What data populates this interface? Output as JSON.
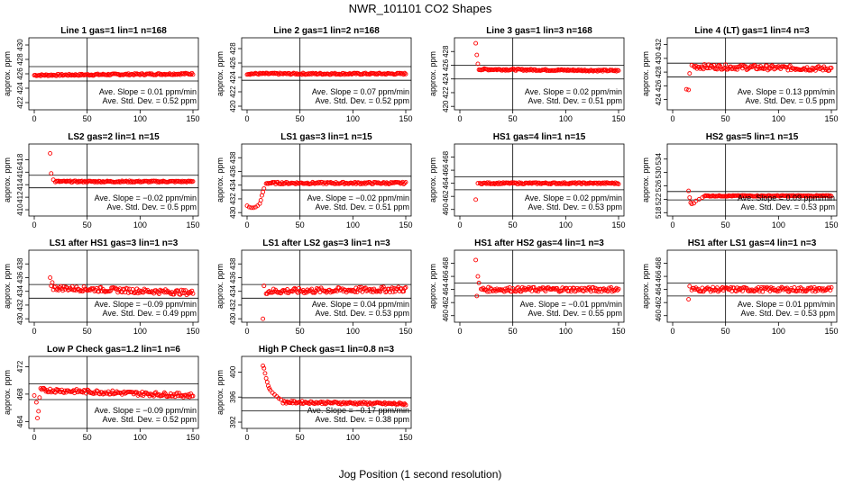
{
  "figure": {
    "title": "NWR_101101   CO2 Shapes",
    "xlabel": "Jog Position (1 second resolution)",
    "ylabel": "approx. ppm",
    "slope_label": "Ave. Slope = ",
    "slope_unit": "  ppm/min",
    "std_label": "Ave. Std. Dev. = ",
    "std_unit": "  ppm"
  },
  "colors": {
    "points": "#ff0000",
    "axes": "#000000"
  },
  "chart_data": [
    {
      "type": "scatter",
      "title": "Line 1 gas=1 lin=1 n=168",
      "xlim": [
        0,
        150
      ],
      "xticks": [
        0,
        50,
        100,
        150
      ],
      "ylim": [
        421,
        431
      ],
      "yticks": [
        422,
        424,
        426,
        428,
        430
      ],
      "hlines": [
        427,
        425
      ],
      "vline": 50,
      "slope": "0.01",
      "std": "0.52",
      "segments": [
        {
          "x": [
            0,
            150
          ],
          "y": [
            425.8,
            426.0
          ],
          "noise": 0.12
        }
      ]
    },
    {
      "type": "scatter",
      "title": "Line 2 gas=1 lin=2 n=168",
      "xlim": [
        0,
        150
      ],
      "xticks": [
        0,
        50,
        100,
        150
      ],
      "ylim": [
        419.5,
        429.5
      ],
      "yticks": [
        420,
        422,
        424,
        426,
        428
      ],
      "hlines": [
        425.5,
        423.6
      ],
      "vline": 50,
      "slope": "0.07",
      "std": "0.52",
      "segments": [
        {
          "x": [
            0,
            150
          ],
          "y": [
            424.5,
            424.5
          ],
          "noise": 0.12
        }
      ]
    },
    {
      "type": "scatter",
      "title": "Line 3 gas=1 lin=3 n=168",
      "xlim": [
        0,
        150
      ],
      "xticks": [
        0,
        50,
        100,
        150
      ],
      "ylim": [
        419.5,
        430
      ],
      "yticks": [
        420,
        422,
        424,
        426,
        428
      ],
      "hlines": [
        426.0,
        424.0
      ],
      "vline": 50,
      "slope": "0.02",
      "std": "0.51",
      "points": [
        [
          15,
          429.2
        ],
        [
          16,
          427.5
        ],
        [
          17,
          426.2
        ]
      ],
      "segments": [
        {
          "x": [
            18,
            150
          ],
          "y": [
            425.4,
            425.2
          ],
          "noise": 0.12
        }
      ]
    },
    {
      "type": "scatter",
      "title": "Line 4 (LT) gas=1 lin=4 n=3",
      "xlim": [
        0,
        150
      ],
      "xticks": [
        0,
        50,
        100,
        150
      ],
      "ylim": [
        422.5,
        433
      ],
      "yticks": [
        424,
        426,
        428,
        430,
        432
      ],
      "hlines": [
        429.3,
        427.3
      ],
      "vline": 50,
      "slope": "0.13",
      "std": "0.5",
      "points": [
        [
          13,
          425.5
        ],
        [
          15,
          425.4
        ],
        [
          16,
          427.8
        ],
        [
          18,
          429.0
        ]
      ],
      "segments": [
        {
          "x": [
            20,
            150
          ],
          "y": [
            428.8,
            428.5
          ],
          "noise": 0.35
        }
      ]
    },
    {
      "type": "scatter",
      "title": "LS2 gas=2 lin=1 n=15",
      "xlim": [
        0,
        150
      ],
      "xticks": [
        0,
        50,
        100,
        150
      ],
      "ylim": [
        409,
        420.5
      ],
      "yticks": [
        410,
        412,
        414,
        416,
        418
      ],
      "hlines": [
        415.5,
        413.5
      ],
      "vline": 50,
      "slope": "−0.02",
      "std": "0.5",
      "points": [
        [
          15,
          419.0
        ],
        [
          16,
          415.8
        ],
        [
          18,
          414.8
        ]
      ],
      "segments": [
        {
          "x": [
            20,
            150
          ],
          "y": [
            414.5,
            414.5
          ],
          "noise": 0.12
        }
      ]
    },
    {
      "type": "scatter",
      "title": "LS1 gas=3 lin=1 n=15",
      "xlim": [
        0,
        150
      ],
      "xticks": [
        0,
        50,
        100,
        150
      ],
      "ylim": [
        429.5,
        440
      ],
      "yticks": [
        430,
        432,
        434,
        436,
        438
      ],
      "hlines": [
        435.3,
        433.3
      ],
      "vline": 50,
      "slope": "−0.02",
      "std": "0.51",
      "points": [
        [
          0,
          431.0
        ],
        [
          2,
          430.8
        ],
        [
          4,
          430.7
        ],
        [
          6,
          430.7
        ],
        [
          8,
          430.8
        ],
        [
          10,
          431.0
        ],
        [
          12,
          431.3
        ],
        [
          13,
          431.8
        ],
        [
          14,
          432.5
        ],
        [
          15,
          433.0
        ],
        [
          16,
          433.5
        ]
      ],
      "segments": [
        {
          "x": [
            18,
            150
          ],
          "y": [
            434.3,
            434.3
          ],
          "noise": 0.15
        }
      ]
    },
    {
      "type": "scatter",
      "title": "HS1 gas=4 lin=1 n=15",
      "xlim": [
        0,
        150
      ],
      "xticks": [
        0,
        50,
        100,
        150
      ],
      "ylim": [
        459,
        470
      ],
      "yticks": [
        460,
        462,
        464,
        466,
        468
      ],
      "hlines": [
        465.0,
        463.0
      ],
      "vline": 50,
      "slope": "0.02",
      "std": "0.53",
      "points": [
        [
          15,
          461.5
        ],
        [
          17,
          464.0
        ]
      ],
      "segments": [
        {
          "x": [
            19,
            150
          ],
          "y": [
            464.0,
            464.0
          ],
          "noise": 0.12
        }
      ]
    },
    {
      "type": "scatter",
      "title": "HS2 gas=5 lin=1 n=15",
      "xlim": [
        0,
        150
      ],
      "xticks": [
        0,
        50,
        100,
        150
      ],
      "ylim": [
        517,
        538.5
      ],
      "yticks": [
        518,
        522,
        526,
        530,
        534
      ],
      "hlines": [
        524.3,
        521.8
      ],
      "vline": 50,
      "slope": "0.09",
      "std": "0.53",
      "points": [
        [
          15,
          524.5
        ],
        [
          16,
          522.5
        ],
        [
          17,
          521.0
        ],
        [
          18,
          520.6
        ],
        [
          20,
          520.8
        ],
        [
          22,
          521.5
        ],
        [
          25,
          522.0
        ],
        [
          28,
          522.5
        ]
      ],
      "segments": [
        {
          "x": [
            30,
            150
          ],
          "y": [
            523.0,
            523.0
          ],
          "noise": 0.15
        }
      ]
    },
    {
      "type": "scatter",
      "title": "LS1 after HS1 gas=3 lin=1 n=3",
      "xlim": [
        0,
        150
      ],
      "xticks": [
        0,
        50,
        100,
        150
      ],
      "ylim": [
        429.5,
        440
      ],
      "yticks": [
        430,
        432,
        434,
        436,
        438
      ],
      "hlines": [
        435.0,
        433.0
      ],
      "vline": 50,
      "slope": "−0.09",
      "std": "0.49",
      "points": [
        [
          15,
          436.0
        ],
        [
          16,
          434.8
        ],
        [
          17,
          435.3
        ]
      ],
      "segments": [
        {
          "x": [
            18,
            150
          ],
          "y": [
            434.5,
            433.8
          ],
          "noise": 0.35
        }
      ]
    },
    {
      "type": "scatter",
      "title": "LS1 after LS2 gas=3 lin=1 n=3",
      "xlim": [
        0,
        150
      ],
      "xticks": [
        0,
        50,
        100,
        150
      ],
      "ylim": [
        429.5,
        440
      ],
      "yticks": [
        430,
        432,
        434,
        436,
        438
      ],
      "hlines": [
        435.0,
        433.0
      ],
      "vline": 50,
      "slope": "0.04",
      "std": "0.53",
      "points": [
        [
          15,
          430.0
        ],
        [
          16,
          434.8
        ]
      ],
      "segments": [
        {
          "x": [
            18,
            150
          ],
          "y": [
            434.0,
            434.3
          ],
          "noise": 0.4
        }
      ]
    },
    {
      "type": "scatter",
      "title": "HS1 after HS2 gas=4 lin=1 n=3",
      "xlim": [
        0,
        150
      ],
      "xticks": [
        0,
        50,
        100,
        150
      ],
      "ylim": [
        459,
        470
      ],
      "yticks": [
        460,
        462,
        464,
        466,
        468
      ],
      "hlines": [
        465.0,
        463.0
      ],
      "vline": 50,
      "slope": "−0.01",
      "std": "0.55",
      "points": [
        [
          15,
          468.5
        ],
        [
          16,
          463.0
        ],
        [
          17,
          466.0
        ],
        [
          18,
          465.0
        ]
      ],
      "segments": [
        {
          "x": [
            20,
            150
          ],
          "y": [
            464.0,
            464.0
          ],
          "noise": 0.35
        }
      ]
    },
    {
      "type": "scatter",
      "title": "HS1 after LS1 gas=4 lin=1 n=3",
      "xlim": [
        0,
        150
      ],
      "xticks": [
        0,
        50,
        100,
        150
      ],
      "ylim": [
        459,
        470
      ],
      "yticks": [
        460,
        462,
        464,
        466,
        468
      ],
      "hlines": [
        465.0,
        463.0
      ],
      "vline": 50,
      "slope": "0.01",
      "std": "0.53",
      "points": [
        [
          15,
          462.5
        ],
        [
          16,
          464.5
        ]
      ],
      "segments": [
        {
          "x": [
            18,
            150
          ],
          "y": [
            464.0,
            464.0
          ],
          "noise": 0.35
        }
      ]
    },
    {
      "type": "scatter",
      "title": "Low P Check gas=1.2 lin=1 n=6",
      "xlim": [
        0,
        150
      ],
      "xticks": [
        0,
        50,
        100,
        150
      ],
      "ylim": [
        463,
        473.5
      ],
      "yticks": [
        464,
        468,
        472
      ],
      "hlines": [
        469.5,
        467.2
      ],
      "vline": 50,
      "slope": "−0.09",
      "std": "0.52",
      "points": [
        [
          0,
          467.8
        ],
        [
          2,
          466.8
        ],
        [
          3,
          464.5
        ],
        [
          4,
          465.5
        ],
        [
          5,
          467.5
        ]
      ],
      "segments": [
        {
          "x": [
            6,
            150
          ],
          "y": [
            468.6,
            467.8
          ],
          "noise": 0.3
        }
      ]
    },
    {
      "type": "scatter",
      "title": "High P Check gas=1 lin=0.8 n=3",
      "xlim": [
        0,
        150
      ],
      "xticks": [
        0,
        50,
        100,
        150
      ],
      "ylim": [
        391,
        402.5
      ],
      "yticks": [
        392,
        396,
        400
      ],
      "hlines": [
        395.9,
        393.8
      ],
      "vline": 50,
      "slope": "−0.17",
      "std": "0.38",
      "points": [
        [
          15,
          401.0
        ],
        [
          16,
          400.6
        ],
        [
          17,
          399.8
        ],
        [
          18,
          399.0
        ],
        [
          19,
          398.4
        ],
        [
          20,
          397.8
        ],
        [
          21,
          397.4
        ],
        [
          22,
          397.1
        ],
        [
          24,
          396.7
        ],
        [
          26,
          396.4
        ],
        [
          28,
          396.1
        ],
        [
          30,
          395.8
        ],
        [
          32,
          395.6
        ]
      ],
      "segments": [
        {
          "x": [
            34,
            150
          ],
          "y": [
            395.2,
            394.9
          ],
          "noise": 0.2
        }
      ]
    }
  ]
}
